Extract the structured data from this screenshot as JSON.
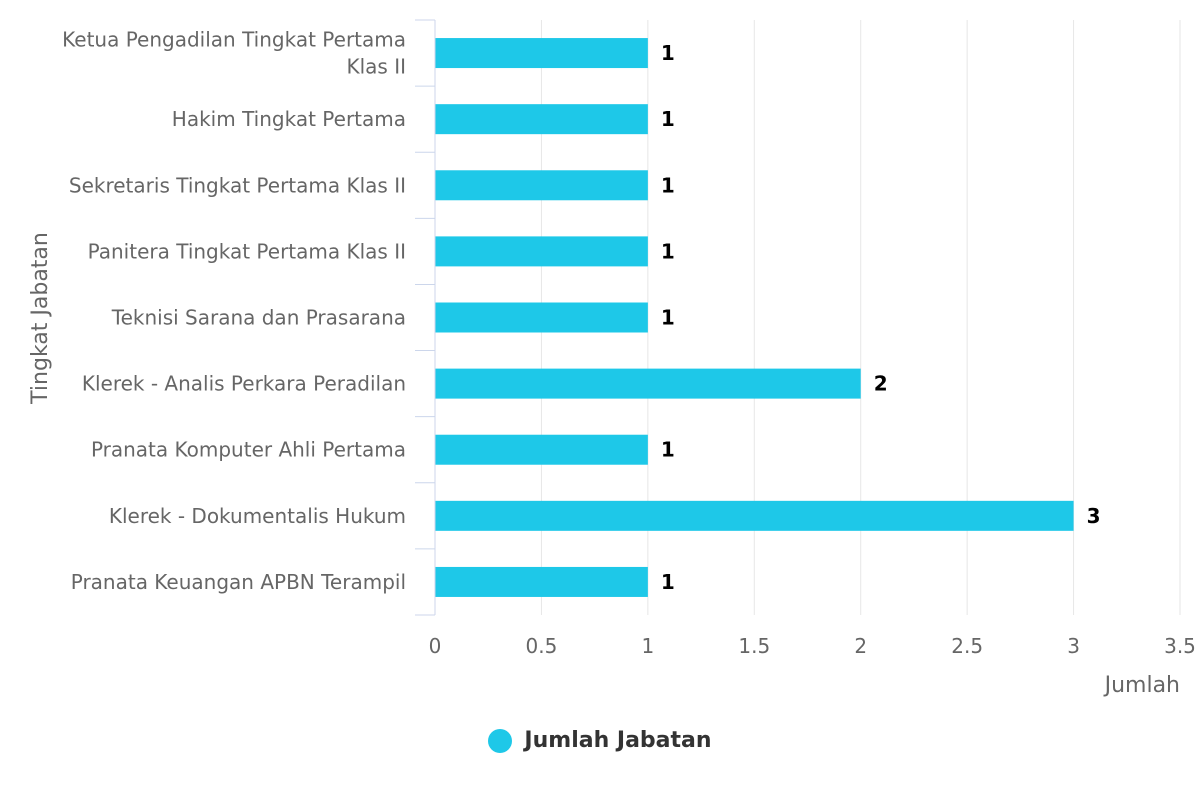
{
  "chart_data": {
    "type": "bar",
    "orientation": "horizontal",
    "categories": [
      "Ketua Pengadilan Tingkat Pertama Klas II",
      "Hakim Tingkat Pertama",
      "Sekretaris Tingkat Pertama Klas II",
      "Panitera Tingkat Pertama Klas II",
      "Teknisi Sarana dan Prasarana",
      "Klerek - Analis Perkara Peradilan",
      "Pranata Komputer Ahli Pertama",
      "Klerek - Dokumentalis Hukum",
      "Pranata Keuangan APBN Terampil"
    ],
    "category_label_lines": [
      [
        "Ketua Pengadilan Tingkat Pertama",
        "Klas II"
      ],
      [
        "Hakim Tingkat Pertama"
      ],
      [
        "Sekretaris Tingkat Pertama Klas II"
      ],
      [
        "Panitera Tingkat Pertama Klas II"
      ],
      [
        "Teknisi Sarana dan Prasarana"
      ],
      [
        "Klerek - Analis Perkara Peradilan"
      ],
      [
        "Pranata Komputer Ahli Pertama"
      ],
      [
        "Klerek - Dokumentalis Hukum"
      ],
      [
        "Pranata Keuangan APBN Terampil"
      ]
    ],
    "series": [
      {
        "name": "Jumlah Jabatan",
        "values": [
          1,
          1,
          1,
          1,
          1,
          2,
          1,
          3,
          1
        ],
        "color": "#1ec8e8"
      }
    ],
    "xlim": [
      0,
      3.5
    ],
    "xticks": [
      0,
      0.5,
      1,
      1.5,
      2,
      2.5,
      3,
      3.5
    ],
    "xtick_labels": [
      "0",
      "0.5",
      "1",
      "1.5",
      "2",
      "2.5",
      "3",
      "3.5"
    ],
    "xlabel": "Jumlah",
    "ylabel": "Tingkat Jabatan",
    "grid": true,
    "data_labels": true,
    "legend_position": "bottom-center"
  },
  "legend": {
    "label": "Jumlah Jabatan",
    "color": "#1ec8e8"
  }
}
